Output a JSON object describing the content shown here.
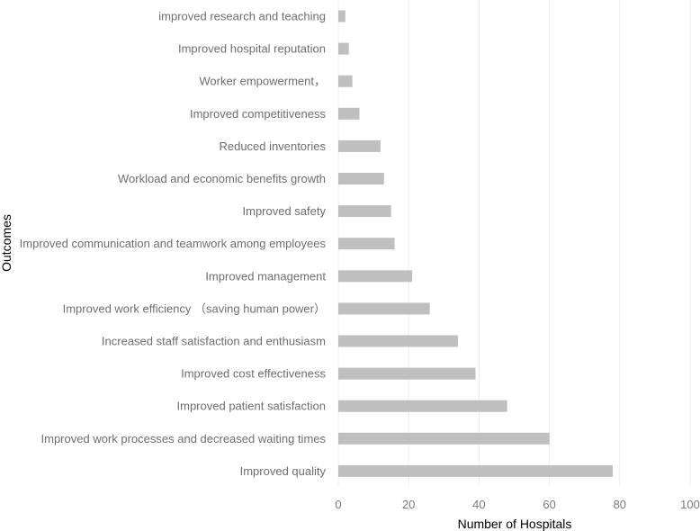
{
  "chart_data": {
    "type": "bar",
    "orientation": "horizontal",
    "title": "",
    "xlabel": "Number of Hospitals",
    "ylabel": "Outcomes",
    "xlim": [
      0,
      100
    ],
    "xticks": [
      0,
      20,
      40,
      60,
      80,
      100
    ],
    "grid": true,
    "legend": "none",
    "bar_color": "#bfbfbf",
    "grid_color": "#ececec",
    "categories": [
      "improved research and teaching",
      "Improved hospital reputation",
      "Worker empowerment，",
      "Improved competitiveness",
      "Reduced inventories",
      "Workload and economic benefits growth",
      "Improved safety",
      "Improved communication and teamwork among employees",
      "Improved management",
      "Improved work efficiency （saving human power）",
      "Increased staff satisfaction and enthusiasm",
      "Improved cost effectiveness",
      "Improved patient satisfaction",
      "Improved work processes and decreased waiting times",
      "Improved quality"
    ],
    "values": [
      2,
      3,
      4,
      6,
      12,
      13,
      15,
      16,
      21,
      26,
      34,
      39,
      48,
      60,
      78
    ]
  }
}
